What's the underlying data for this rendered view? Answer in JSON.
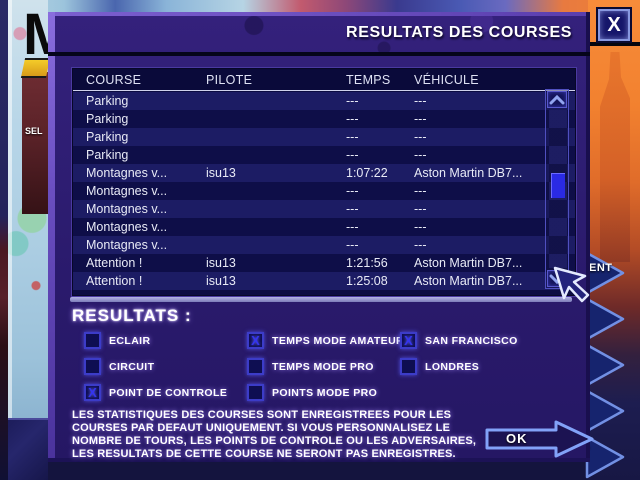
{
  "window": {
    "title": "RESULTATS DES COURSES",
    "close_label": "X"
  },
  "table": {
    "columns": [
      "COURSE",
      "PILOTE",
      "TEMPS",
      "VÉHICULE"
    ],
    "rows": [
      [
        "Parking",
        "",
        "---",
        "---"
      ],
      [
        "Parking",
        "",
        "---",
        "---"
      ],
      [
        "Parking",
        "",
        "---",
        "---"
      ],
      [
        "Parking",
        "",
        "---",
        "---"
      ],
      [
        "Montagnes v...",
        "isu13",
        "1:07:22",
        "Aston Martin DB7..."
      ],
      [
        "Montagnes v...",
        "",
        "---",
        "---"
      ],
      [
        "Montagnes v...",
        "",
        "---",
        "---"
      ],
      [
        "Montagnes v...",
        "",
        "---",
        "---"
      ],
      [
        "Montagnes v...",
        "",
        "---",
        "---"
      ],
      [
        "Attention !",
        "isu13",
        "1:21:56",
        "Aston Martin DB7..."
      ],
      [
        "Attention !",
        "isu13",
        "1:25:08",
        "Aston Martin DB7..."
      ]
    ]
  },
  "results_section": {
    "heading": "RESULTATS :",
    "check_mark": "X",
    "checkboxes": [
      {
        "label": "ECLAIR",
        "checked": false,
        "col": 1
      },
      {
        "label": "CIRCUIT",
        "checked": false,
        "col": 1
      },
      {
        "label": "POINT DE CONTROLE",
        "checked": true,
        "col": 1
      },
      {
        "label": "TEMPS MODE AMATEUR",
        "checked": true,
        "col": 2
      },
      {
        "label": "TEMPS MODE PRO",
        "checked": false,
        "col": 2
      },
      {
        "label": "POINTS MODE PRO",
        "checked": false,
        "col": 2
      },
      {
        "label": "SAN FRANCISCO",
        "checked": true,
        "col": 3
      },
      {
        "label": "LONDRES",
        "checked": false,
        "col": 3
      }
    ]
  },
  "warning": {
    "lines": [
      "LES STATISTIQUES DES COURSES SONT ENREGISTREES POUR LES",
      "COURSES PAR DEFAUT UNIQUEMENT. SI VOUS PERSONNALISEZ LE",
      "NOMBRE DE TOURS, LES POINTS DE CONTROLE OU LES ADVERSAIRES,",
      "LES RESULTATS DE CETTE COURSE NE SERONT PAS ENREGISTRES."
    ]
  },
  "ok_button": {
    "label": "OK"
  },
  "background": {
    "logo_fragment": "M",
    "left_menu_fragment": "SEL",
    "right_menu_fragment": "ENT",
    "dots_fragment": "..."
  },
  "colors": {
    "dialog_purple": "#2f1e74",
    "table_row_light": "#1c1c64",
    "table_row_dark": "#0e0e48",
    "scroll_thumb_blue": "#2a2ae4",
    "checkbox_x_blue": "#3434f0",
    "background_orange": "#f2812f",
    "accent_glow": "#aa8cff"
  }
}
